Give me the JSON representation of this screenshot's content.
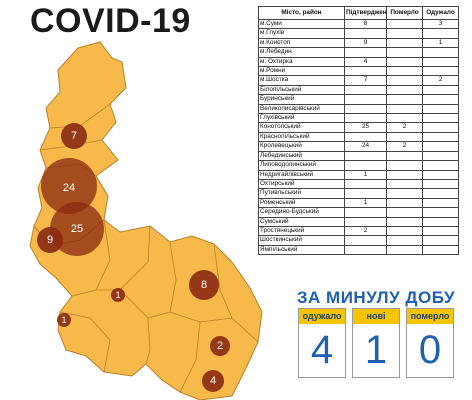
{
  "title": "COVID-19",
  "table": {
    "headers": [
      "Місто, район",
      "Підтверджено",
      "Померло",
      "Одужало"
    ],
    "rows": [
      [
        "м.Суми",
        "8",
        "",
        "3"
      ],
      [
        "м.Глухів",
        "",
        "",
        ""
      ],
      [
        "м.Конотоп",
        "9",
        "",
        "1"
      ],
      [
        "м.Лебедин",
        "",
        "",
        ""
      ],
      [
        "м. Охтирка",
        "4",
        "",
        ""
      ],
      [
        "м.Ромни",
        "",
        "",
        ""
      ],
      [
        "м.Шостка",
        "7",
        "",
        "2"
      ],
      [
        "Білопільський",
        "",
        "",
        ""
      ],
      [
        "Буринський",
        "",
        "",
        ""
      ],
      [
        "Великописарівський",
        "",
        "",
        ""
      ],
      [
        "Глухівський",
        "",
        "",
        ""
      ],
      [
        "Конотопський",
        "25",
        "2",
        ""
      ],
      [
        "Краснопільський",
        "",
        "",
        ""
      ],
      [
        "Кролевецький",
        "24",
        "2",
        ""
      ],
      [
        "Лебединський",
        "",
        "",
        ""
      ],
      [
        "Липоводолинський",
        "",
        "",
        ""
      ],
      [
        "Недригайлівський",
        "1",
        "",
        ""
      ],
      [
        "Охтирський",
        "",
        "",
        ""
      ],
      [
        "Путивльський",
        "",
        "",
        ""
      ],
      [
        "Роменський",
        "1",
        "",
        ""
      ],
      [
        "Середино-Будський",
        "",
        "",
        ""
      ],
      [
        "Сумський",
        "",
        "",
        ""
      ],
      [
        "Тростянецький",
        "2",
        "",
        ""
      ],
      [
        "Шосткинський",
        "",
        "",
        ""
      ],
      [
        "Ямпільський",
        "",
        "",
        ""
      ]
    ]
  },
  "map_labels": {
    "b7": "7",
    "b24": "24",
    "b25": "25",
    "b9": "9",
    "b8": "8",
    "b1a": "1",
    "b1b": "1",
    "b2": "2",
    "b4": "4"
  },
  "daily": {
    "title": "ЗА МИНУЛУ ДОБУ",
    "recovered_label": "одужало",
    "recovered_value": "4",
    "new_label": "нові",
    "new_value": "1",
    "died_label": "померло",
    "died_value": "0"
  },
  "colors": {
    "region_fill": "#f6b94a",
    "region_border": "#b9802a",
    "bubble": "#8b2a12",
    "accent_blue": "#1f5fb4",
    "box_header": "#f4c400"
  }
}
